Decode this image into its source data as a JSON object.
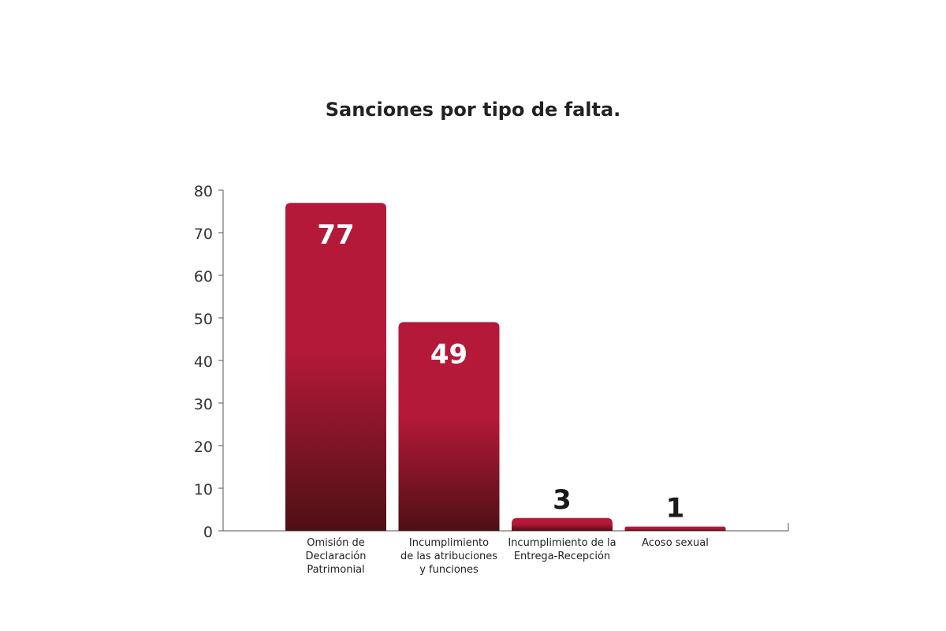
{
  "chart_data": {
    "type": "bar",
    "title": "Sanciones por tipo de falta.",
    "xlabel": "",
    "ylabel": "",
    "ylim": [
      0,
      80
    ],
    "yticks": [
      0,
      10,
      20,
      30,
      40,
      50,
      60,
      70,
      80
    ],
    "categories": [
      [
        "Omisión de",
        "Declaración",
        "Patrimonial"
      ],
      [
        "Incumplimiento",
        "de las atribuciones",
        "y funciones"
      ],
      [
        "Incumplimiento de la",
        "Entrega-Recepción"
      ],
      [
        "Acoso sexual"
      ]
    ],
    "values": [
      77,
      49,
      3,
      1
    ],
    "grid": false,
    "legend": "none",
    "colors": {
      "bar_top": "#b5193a",
      "bar_bottom": "#4e1014",
      "axis": "#555555",
      "title": "#222222",
      "value_label_inside": "#ffffff",
      "value_label_outside": "#1a1a1a"
    }
  }
}
